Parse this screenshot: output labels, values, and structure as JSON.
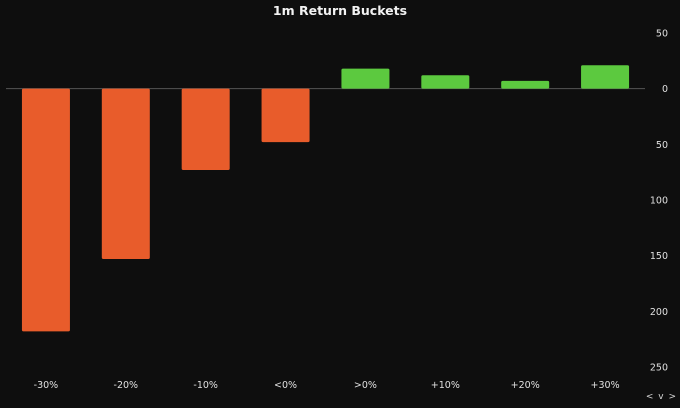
{
  "chart_data": {
    "type": "bar",
    "title": "1m Return Buckets",
    "categories": [
      "-30%",
      "-20%",
      "-10%",
      "<0%",
      ">0%",
      "+10%",
      "+20%",
      "+30%"
    ],
    "values": [
      -218,
      -153,
      -73,
      -48,
      18,
      12,
      7,
      21
    ],
    "y_axis": {
      "ticks": [
        50,
        0,
        50,
        100,
        150,
        200,
        250
      ],
      "tick_values": [
        50,
        0,
        -50,
        -100,
        -150,
        -200,
        -250
      ],
      "range": [
        -250,
        50
      ],
      "position": "right"
    },
    "colors": {
      "negative": "#e85c2b",
      "positive": "#5cc93f",
      "background": "#0e0e0e",
      "zero_line": "#555555"
    },
    "grid": false,
    "legend": "none"
  },
  "controls": {
    "scroll_label": "< v >"
  }
}
